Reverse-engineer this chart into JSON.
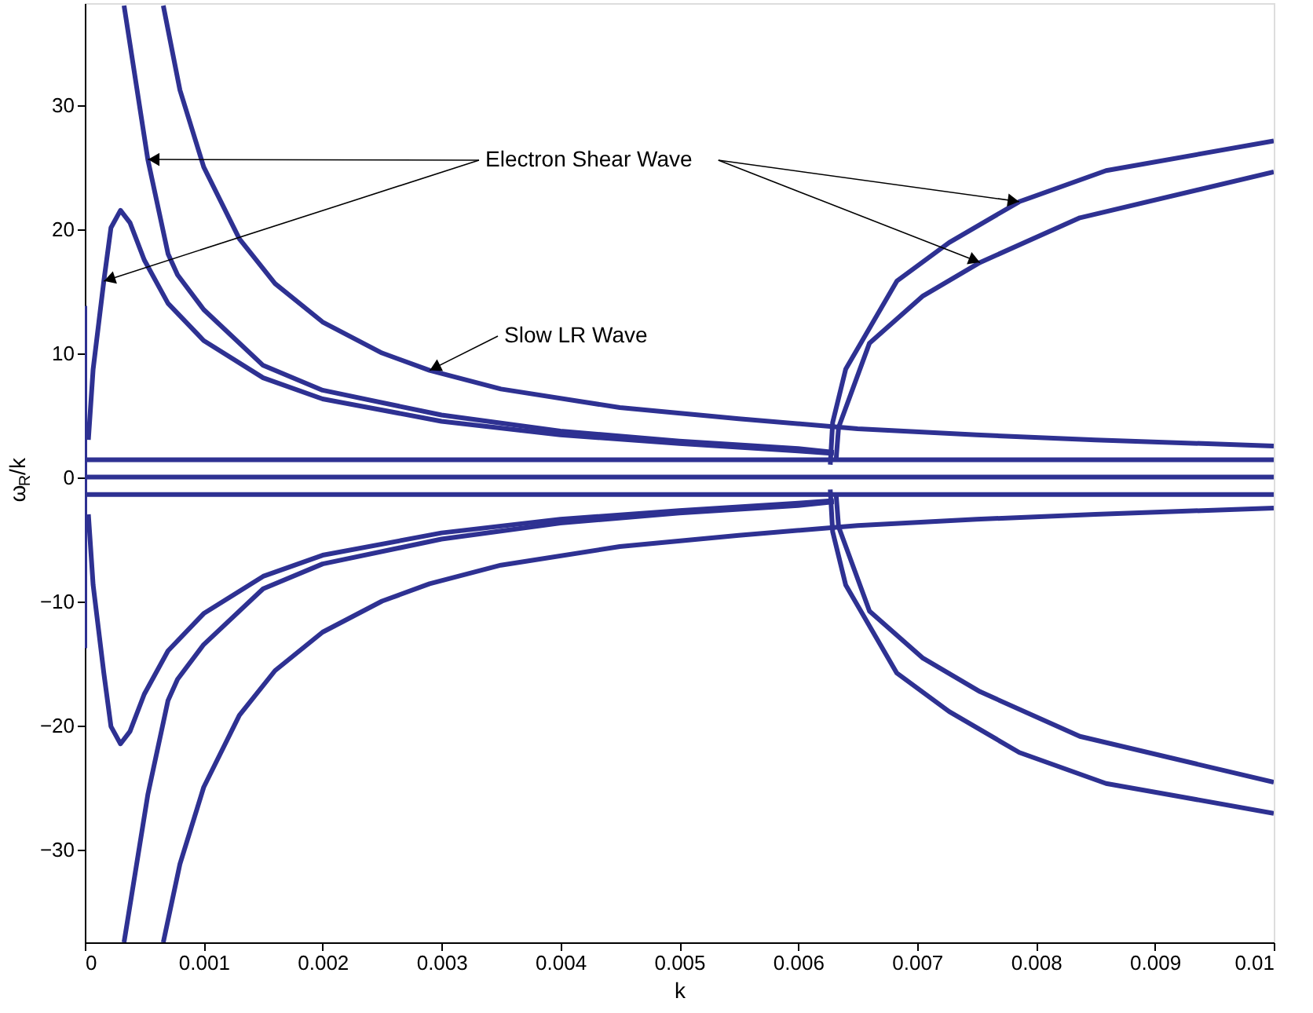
{
  "chart_data": {
    "type": "line",
    "xlabel": "k",
    "ylabel": "ω$_{R}$/k",
    "xlim": [
      0,
      0.01
    ],
    "ylim": [
      -37.5,
      38.2
    ],
    "xticks": [
      0,
      0.001,
      0.002,
      0.003,
      0.004,
      0.005,
      0.006,
      0.007,
      0.008,
      0.009,
      0.01
    ],
    "yticks": [
      -30,
      -20,
      -10,
      0,
      10,
      20,
      30
    ],
    "grid": false,
    "legend": false,
    "marker": "none",
    "line_style": "solid",
    "annotations": [
      {
        "text": "Electron Shear Wave",
        "x": 0.00053,
        "y": 25.6
      },
      {
        "text": "Slow LR Wave",
        "x": 0.0029,
        "y": 8.6
      }
    ],
    "series": [
      {
        "color": "#2e3192",
        "x": [
          0.00066,
          0.0008,
          0.001,
          0.0013,
          0.0016,
          0.002,
          0.0025,
          0.0029,
          0.0035,
          0.0045,
          0.0055,
          0.0065,
          0.0075,
          0.0085,
          0.01
        ],
        "values": [
          38,
          31.2,
          25,
          19.2,
          15.6,
          12.5,
          10,
          8.6,
          7.1,
          5.6,
          4.7,
          3.9,
          3.4,
          3,
          2.5
        ]
      },
      {
        "color": "#2e3192",
        "x": [
          0.00066,
          0.0008,
          0.001,
          0.0013,
          0.0016,
          0.002,
          0.0025,
          0.0029,
          0.0035,
          0.0045,
          0.0055,
          0.0065,
          0.0075,
          0.0085,
          0.01
        ],
        "values": [
          -37.5,
          -31.2,
          -25,
          -19.2,
          -15.6,
          -12.5,
          -10,
          -8.6,
          -7.1,
          -5.6,
          -4.7,
          -3.9,
          -3.4,
          -3,
          -2.5
        ]
      },
      {
        "color": "#2e3192",
        "x": [
          0.00033,
          0.00053,
          0.0007,
          0.00078,
          0.001,
          0.0015,
          0.002,
          0.003,
          0.004,
          0.005,
          0.006,
          0.0063
        ],
        "values": [
          38,
          25.6,
          18,
          16.3,
          13.5,
          9,
          7,
          5,
          3.7,
          2.9,
          2.3,
          2
        ]
      },
      {
        "color": "#2e3192",
        "x": [
          0.00033,
          0.00053,
          0.0007,
          0.00078,
          0.001,
          0.0015,
          0.002,
          0.003,
          0.004,
          0.005,
          0.006,
          0.0063
        ],
        "values": [
          -37.5,
          -25.6,
          -18,
          -16.3,
          -13.5,
          -9,
          -7,
          -5,
          -3.7,
          -2.9,
          -2.3,
          -2
        ]
      },
      {
        "color": "#2e3192",
        "x": [
          3e-05,
          7e-05,
          0.00016,
          0.00022,
          0.0003,
          0.00038,
          0.0005,
          0.0007,
          0.001,
          0.0015,
          0.002,
          0.003,
          0.004,
          0.005,
          0.006,
          0.0063
        ],
        "values": [
          3,
          8.7,
          15.8,
          20.1,
          21.5,
          20.5,
          17.5,
          14,
          11,
          8,
          6.3,
          4.5,
          3.4,
          2.7,
          2.1,
          1.9
        ]
      },
      {
        "color": "#2e3192",
        "x": [
          3e-05,
          7e-05,
          0.00016,
          0.00022,
          0.0003,
          0.00038,
          0.0005,
          0.0007,
          0.001,
          0.0015,
          0.002,
          0.003,
          0.004,
          0.005,
          0.006,
          0.0063
        ],
        "values": [
          -3,
          -8.7,
          -15.8,
          -20.1,
          -21.5,
          -20.5,
          -17.5,
          -14,
          -11,
          -8,
          -6.3,
          -4.5,
          -3.4,
          -2.7,
          -2.1,
          -1.9
        ]
      },
      {
        "color": "#2e3192",
        "x": [
          0.00627,
          0.00629,
          0.0064,
          0.00683,
          0.00727,
          0.00786,
          0.00859,
          0.01
        ],
        "values": [
          1,
          4.4,
          8.7,
          15.8,
          18.9,
          22.2,
          24.7,
          27.1
        ]
      },
      {
        "color": "#2e3192",
        "x": [
          0.00627,
          0.00629,
          0.0064,
          0.00683,
          0.00727,
          0.00786,
          0.00859,
          0.01
        ],
        "values": [
          -1,
          -4.4,
          -8.7,
          -15.8,
          -18.9,
          -22.2,
          -24.7,
          -27.1
        ]
      },
      {
        "color": "#2e3192",
        "x": [
          0.00632,
          0.00634,
          0.0066,
          0.00705,
          0.00753,
          0.00837,
          0.01
        ],
        "values": [
          1.5,
          4,
          10.8,
          14.6,
          17.3,
          20.9,
          24.6
        ]
      },
      {
        "color": "#2e3192",
        "x": [
          0.00632,
          0.00634,
          0.0066,
          0.00705,
          0.00753,
          0.00837,
          0.01
        ],
        "values": [
          -1.5,
          -4,
          -10.8,
          -14.6,
          -17.3,
          -20.9,
          -24.6
        ]
      },
      {
        "color": "#2e3192",
        "x": [
          0,
          0.01
        ],
        "values": [
          1.4,
          1.4
        ]
      },
      {
        "color": "#2e3192",
        "x": [
          0,
          0.01
        ],
        "values": [
          0,
          0
        ]
      },
      {
        "color": "#2e3192",
        "x": [
          0,
          0.01
        ],
        "values": [
          -1.4,
          -1.4
        ]
      },
      {
        "color": "#2e3192",
        "x": [
          0,
          0
        ],
        "values": [
          -13.8,
          13.8
        ]
      }
    ]
  }
}
